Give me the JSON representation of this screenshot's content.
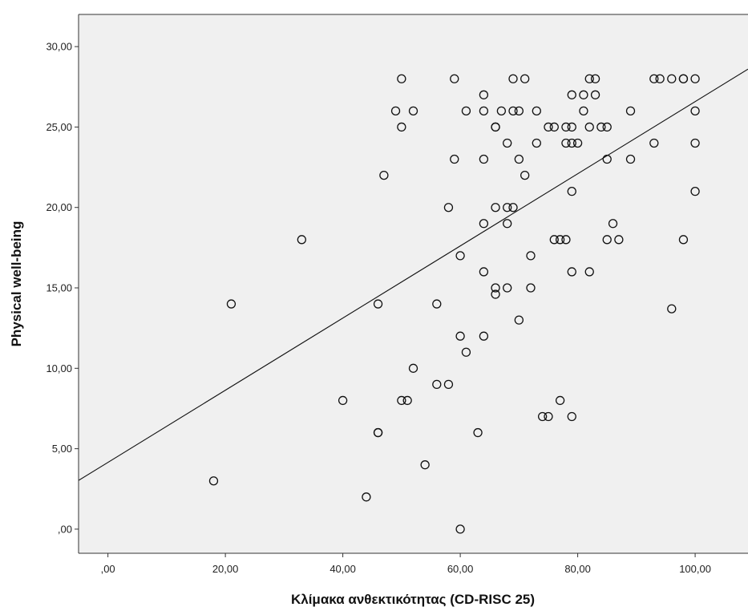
{
  "chart_data": {
    "type": "scatter",
    "title": "",
    "xlabel": "Κλίμακα ανθεκτικότητας (CD-RISC 25)",
    "ylabel": "Physical well-being",
    "xlim": [
      -5,
      109
    ],
    "ylim": [
      -1.5,
      32
    ],
    "x_ticks": [
      0,
      20,
      40,
      60,
      80,
      100
    ],
    "x_tick_labels": [
      ",00",
      "20,00",
      "40,00",
      "60,00",
      "80,00",
      "100,00"
    ],
    "y_ticks": [
      0,
      5,
      10,
      15,
      20,
      25,
      30
    ],
    "y_tick_labels": [
      ",00",
      "5,00",
      "10,00",
      "15,00",
      "20,00",
      "25,00",
      "30,00"
    ],
    "grid": false,
    "legend": "none",
    "fit_line": {
      "slope": 0.2243,
      "intercept": 4.15
    },
    "colors": {
      "plot_background": "#f0f0f0",
      "marker_stroke": "#111111",
      "line": "#111111",
      "axes": "#333333"
    },
    "points": [
      [
        18,
        3
      ],
      [
        21,
        14
      ],
      [
        33,
        18
      ],
      [
        40,
        8
      ],
      [
        44,
        2
      ],
      [
        46,
        14
      ],
      [
        46,
        6
      ],
      [
        46,
        6
      ],
      [
        47,
        22
      ],
      [
        49,
        26
      ],
      [
        50,
        28
      ],
      [
        50,
        25
      ],
      [
        50,
        8
      ],
      [
        51,
        8
      ],
      [
        52,
        26
      ],
      [
        52,
        10
      ],
      [
        54,
        4
      ],
      [
        56,
        14
      ],
      [
        56,
        9
      ],
      [
        58,
        9
      ],
      [
        58,
        20
      ],
      [
        59,
        28
      ],
      [
        59,
        23
      ],
      [
        60,
        17
      ],
      [
        60,
        12
      ],
      [
        60,
        0
      ],
      [
        61,
        26
      ],
      [
        61,
        11
      ],
      [
        63,
        6
      ],
      [
        64,
        27
      ],
      [
        64,
        26
      ],
      [
        64,
        23
      ],
      [
        64,
        19
      ],
      [
        64,
        16
      ],
      [
        64,
        12
      ],
      [
        66,
        25
      ],
      [
        66,
        25
      ],
      [
        66,
        20
      ],
      [
        66,
        15
      ],
      [
        66,
        14.6
      ],
      [
        67,
        26
      ],
      [
        68,
        24
      ],
      [
        68,
        20
      ],
      [
        68,
        19
      ],
      [
        68,
        15
      ],
      [
        69,
        28
      ],
      [
        69,
        26
      ],
      [
        69,
        20
      ],
      [
        70,
        26
      ],
      [
        70,
        23
      ],
      [
        70,
        13
      ],
      [
        71,
        28
      ],
      [
        71,
        22
      ],
      [
        72,
        17
      ],
      [
        72,
        15
      ],
      [
        73,
        26
      ],
      [
        73,
        24
      ],
      [
        74,
        7
      ],
      [
        75,
        25
      ],
      [
        75,
        7
      ],
      [
        76,
        25
      ],
      [
        76,
        18
      ],
      [
        77,
        18
      ],
      [
        77,
        8
      ],
      [
        78,
        25
      ],
      [
        78,
        24
      ],
      [
        78,
        18
      ],
      [
        79,
        27
      ],
      [
        79,
        25
      ],
      [
        79,
        24
      ],
      [
        79,
        21
      ],
      [
        79,
        16
      ],
      [
        79,
        7
      ],
      [
        80,
        24
      ],
      [
        81,
        27
      ],
      [
        81,
        26
      ],
      [
        82,
        28
      ],
      [
        82,
        25
      ],
      [
        82,
        16
      ],
      [
        83,
        28
      ],
      [
        83,
        27
      ],
      [
        84,
        25
      ],
      [
        85,
        25
      ],
      [
        85,
        23
      ],
      [
        85,
        18
      ],
      [
        86,
        19
      ],
      [
        87,
        18
      ],
      [
        89,
        26
      ],
      [
        89,
        23
      ],
      [
        93,
        28
      ],
      [
        93,
        24
      ],
      [
        94,
        28
      ],
      [
        96,
        28
      ],
      [
        96,
        13.7
      ],
      [
        98,
        28
      ],
      [
        98,
        28
      ],
      [
        98,
        18
      ],
      [
        100,
        28
      ],
      [
        100,
        26
      ],
      [
        100,
        24
      ],
      [
        100,
        21
      ]
    ]
  }
}
